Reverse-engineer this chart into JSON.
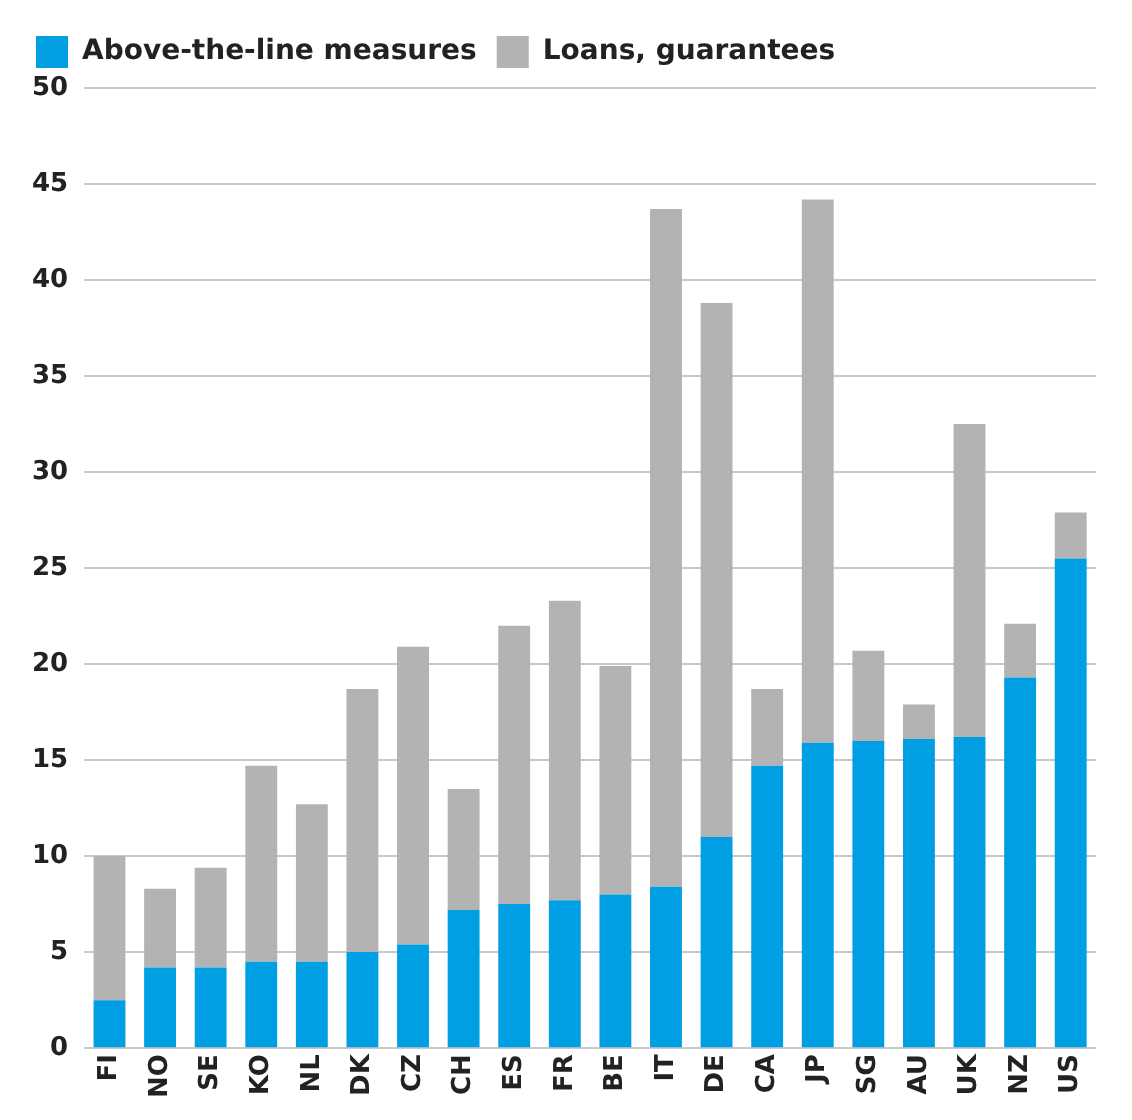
{
  "chart_data": {
    "type": "bar",
    "stacked": true,
    "legend": "top",
    "grid": "y",
    "categories": [
      "FI",
      "NO",
      "SE",
      "KO",
      "NL",
      "DK",
      "CZ",
      "CH",
      "ES",
      "FR",
      "BE",
      "IT",
      "DE",
      "CA",
      "JP",
      "SG",
      "AU",
      "UK",
      "NZ",
      "US"
    ],
    "series": [
      {
        "name": "Above-the-line measures",
        "color": "#009fe3",
        "values": [
          2.5,
          4.2,
          4.2,
          4.5,
          4.5,
          5.0,
          5.4,
          7.2,
          7.5,
          7.7,
          8.0,
          8.4,
          11.0,
          14.7,
          15.9,
          16.0,
          16.1,
          16.2,
          19.3,
          25.5
        ]
      },
      {
        "name": "Loans, guarantees",
        "color": "#b3b3b3",
        "values": [
          7.5,
          4.1,
          5.2,
          10.2,
          8.2,
          13.7,
          15.5,
          6.3,
          14.5,
          15.6,
          11.9,
          35.3,
          27.8,
          4.0,
          28.3,
          4.7,
          1.8,
          16.3,
          2.8,
          2.4
        ]
      }
    ],
    "ylim": [
      0,
      50
    ],
    "yticks": [
      0,
      5,
      10,
      15,
      20,
      25,
      30,
      35,
      40,
      45,
      50
    ]
  }
}
